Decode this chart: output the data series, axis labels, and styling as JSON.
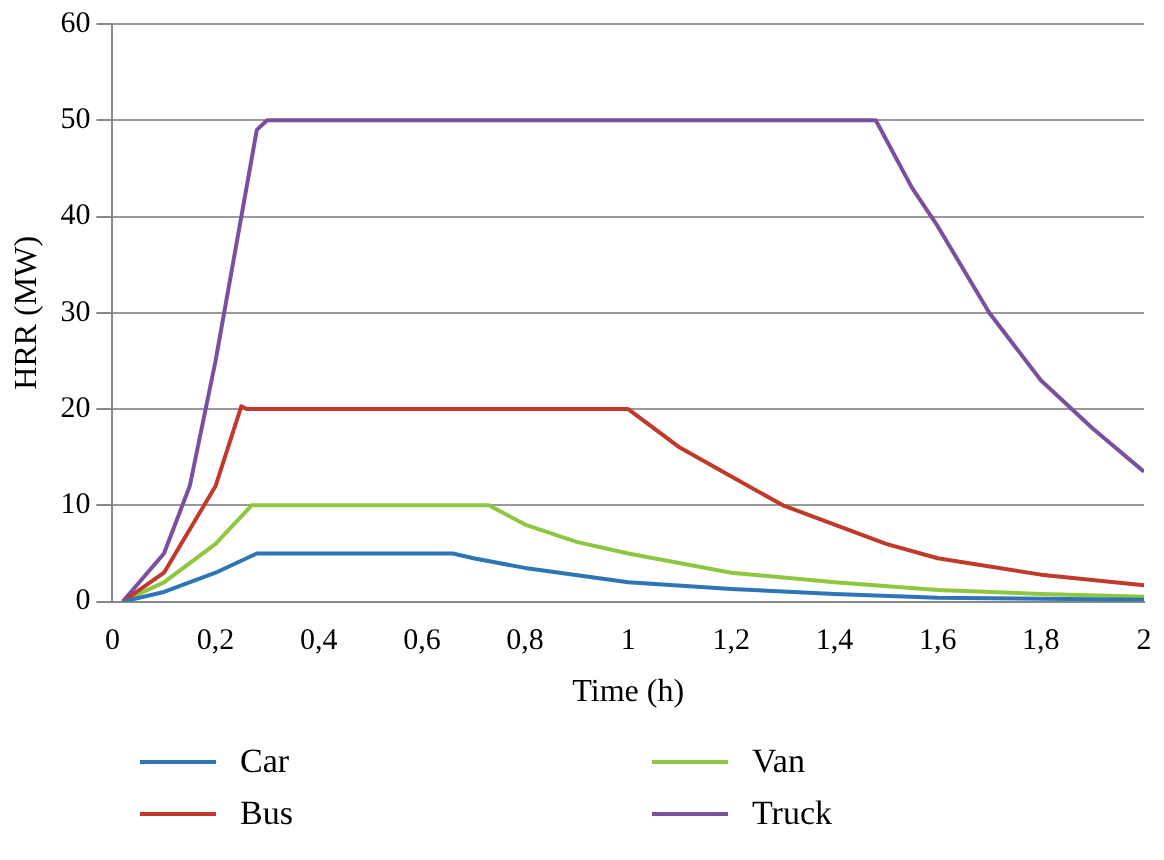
{
  "chart_data": {
    "type": "line",
    "xlabel": "Time (h)",
    "ylabel": "HRR (MW)",
    "xlim": [
      0,
      2
    ],
    "ylim": [
      0,
      60
    ],
    "xticks": [
      0,
      {
        "value": 0.2,
        "label": "0,2"
      },
      {
        "value": 0.4,
        "label": "0,4"
      },
      {
        "value": 0.6,
        "label": "0,6"
      },
      {
        "value": 0.8,
        "label": "0,8"
      },
      1,
      {
        "value": 1.2,
        "label": "1,2"
      },
      {
        "value": 1.4,
        "label": "1,4"
      },
      {
        "value": 1.6,
        "label": "1,6"
      },
      {
        "value": 1.8,
        "label": "1,8"
      },
      2
    ],
    "yticks": [
      0,
      10,
      20,
      30,
      40,
      50,
      60
    ],
    "grid": "y",
    "legend": "bottom",
    "marker": "none",
    "line_style": "solid",
    "series": [
      {
        "name": "Car",
        "color": "#2e75b6",
        "x": [
          0.02,
          0.1,
          0.2,
          0.28,
          0.66,
          0.7,
          0.8,
          1,
          1.2,
          1.4,
          1.6,
          2
        ],
        "values": [
          0,
          1,
          3,
          5,
          5,
          4.5,
          3.5,
          2,
          1.3,
          0.8,
          0.4,
          0.2
        ]
      },
      {
        "name": "Bus",
        "color": "#c0392b",
        "x": [
          0.02,
          0.1,
          0.2,
          0.25,
          0.26,
          1,
          1.05,
          1.1,
          1.2,
          1.3,
          1.4,
          1.5,
          1.6,
          1.8,
          2
        ],
        "values": [
          0,
          3,
          12,
          20.3,
          20,
          20,
          18,
          16,
          13,
          10,
          8,
          6,
          4.5,
          2.8,
          1.7
        ]
      },
      {
        "name": "Van",
        "color": "#8dc63f",
        "x": [
          0.02,
          0.1,
          0.2,
          0.27,
          0.73,
          0.8,
          0.9,
          1,
          1.2,
          1.4,
          1.6,
          1.8,
          2
        ],
        "values": [
          0,
          2,
          6,
          10,
          10,
          8,
          6.2,
          5,
          3,
          2,
          1.2,
          0.8,
          0.5
        ]
      },
      {
        "name": "Truck",
        "color": "#7b4fa0",
        "x": [
          0.02,
          0.1,
          0.15,
          0.2,
          0.25,
          0.28,
          0.3,
          1.48,
          1.5,
          1.55,
          1.6,
          1.7,
          1.8,
          1.9,
          2
        ],
        "values": [
          0,
          5,
          12,
          25,
          40,
          49,
          50,
          50,
          48,
          43,
          39,
          30,
          23,
          18,
          13.5
        ]
      }
    ]
  }
}
